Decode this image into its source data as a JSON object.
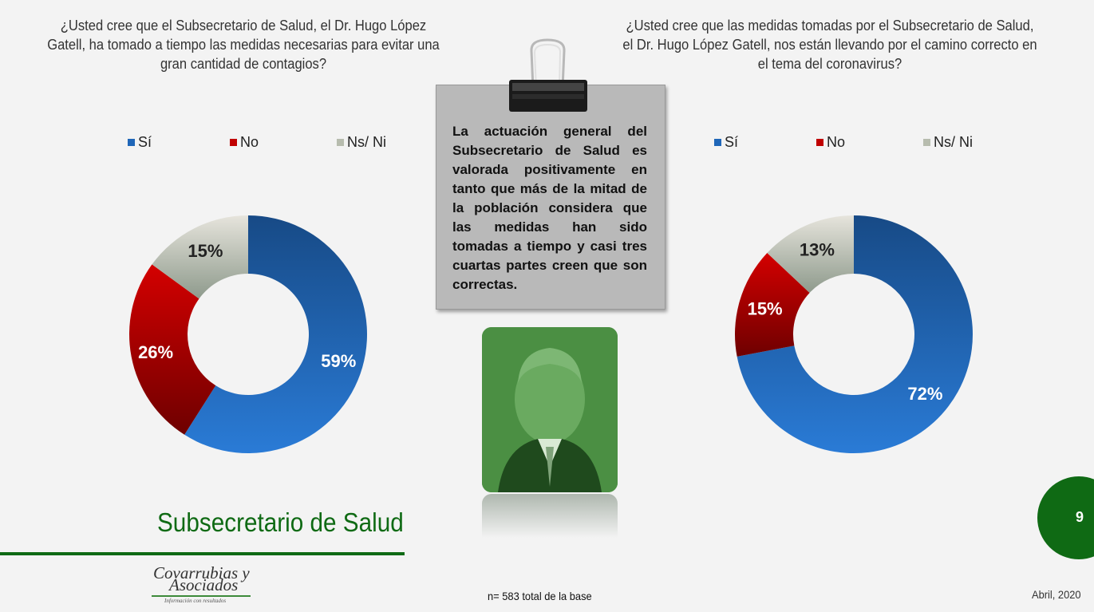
{
  "left_question": "¿Usted cree que el Subsecretario de Salud, el Dr. Hugo López Gatell, ha tomado a tiempo las medidas necesarias para evitar una gran cantidad de contagios?",
  "right_question": "¿Usted cree que las medidas tomadas por el Subsecretario de Salud, el Dr. Hugo López Gatell, nos están llevando por el camino correcto en el tema del coronavirus?",
  "note": "La actuación general del Subsecretario de Salud es valorada positivamente en tanto que más de la mitad de la población considera que las medidas han sido tomadas a tiempo y casi tres cuartas partes creen que son correctas.",
  "section_title": "Subsecretario de Salud",
  "footnote": "n= 583 total de la base",
  "date": "Abril, 2020",
  "page_number": "9",
  "logo": {
    "line1": "Covarrubias y",
    "line2": "Asociados",
    "tagline": "Información con resultados"
  },
  "colors": {
    "si": "#1f66b8",
    "no": "#c00000",
    "nsni": "#c9cbbf",
    "accent": "#0f6a14"
  },
  "chart_data": [
    {
      "type": "pie",
      "subtype": "donut",
      "categories": [
        "Sí",
        "No",
        "Ns/ Ni"
      ],
      "values": [
        59,
        26,
        15
      ],
      "labels": [
        "59%",
        "26%",
        "15%"
      ],
      "legend_position": "top"
    },
    {
      "type": "pie",
      "subtype": "donut",
      "categories": [
        "Sí",
        "No",
        "Ns/ Ni"
      ],
      "values": [
        72,
        15,
        13
      ],
      "labels": [
        "72%",
        "15%",
        "13%"
      ],
      "legend_position": "top"
    }
  ]
}
